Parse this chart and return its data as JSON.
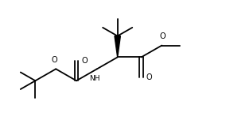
{
  "bg_color": "#ffffff",
  "line_color": "#000000",
  "line_width": 1.3,
  "figsize": [
    2.84,
    1.52
  ],
  "dpi": 100,
  "xlim": [
    0,
    10
  ],
  "ylim": [
    0,
    5.35
  ]
}
